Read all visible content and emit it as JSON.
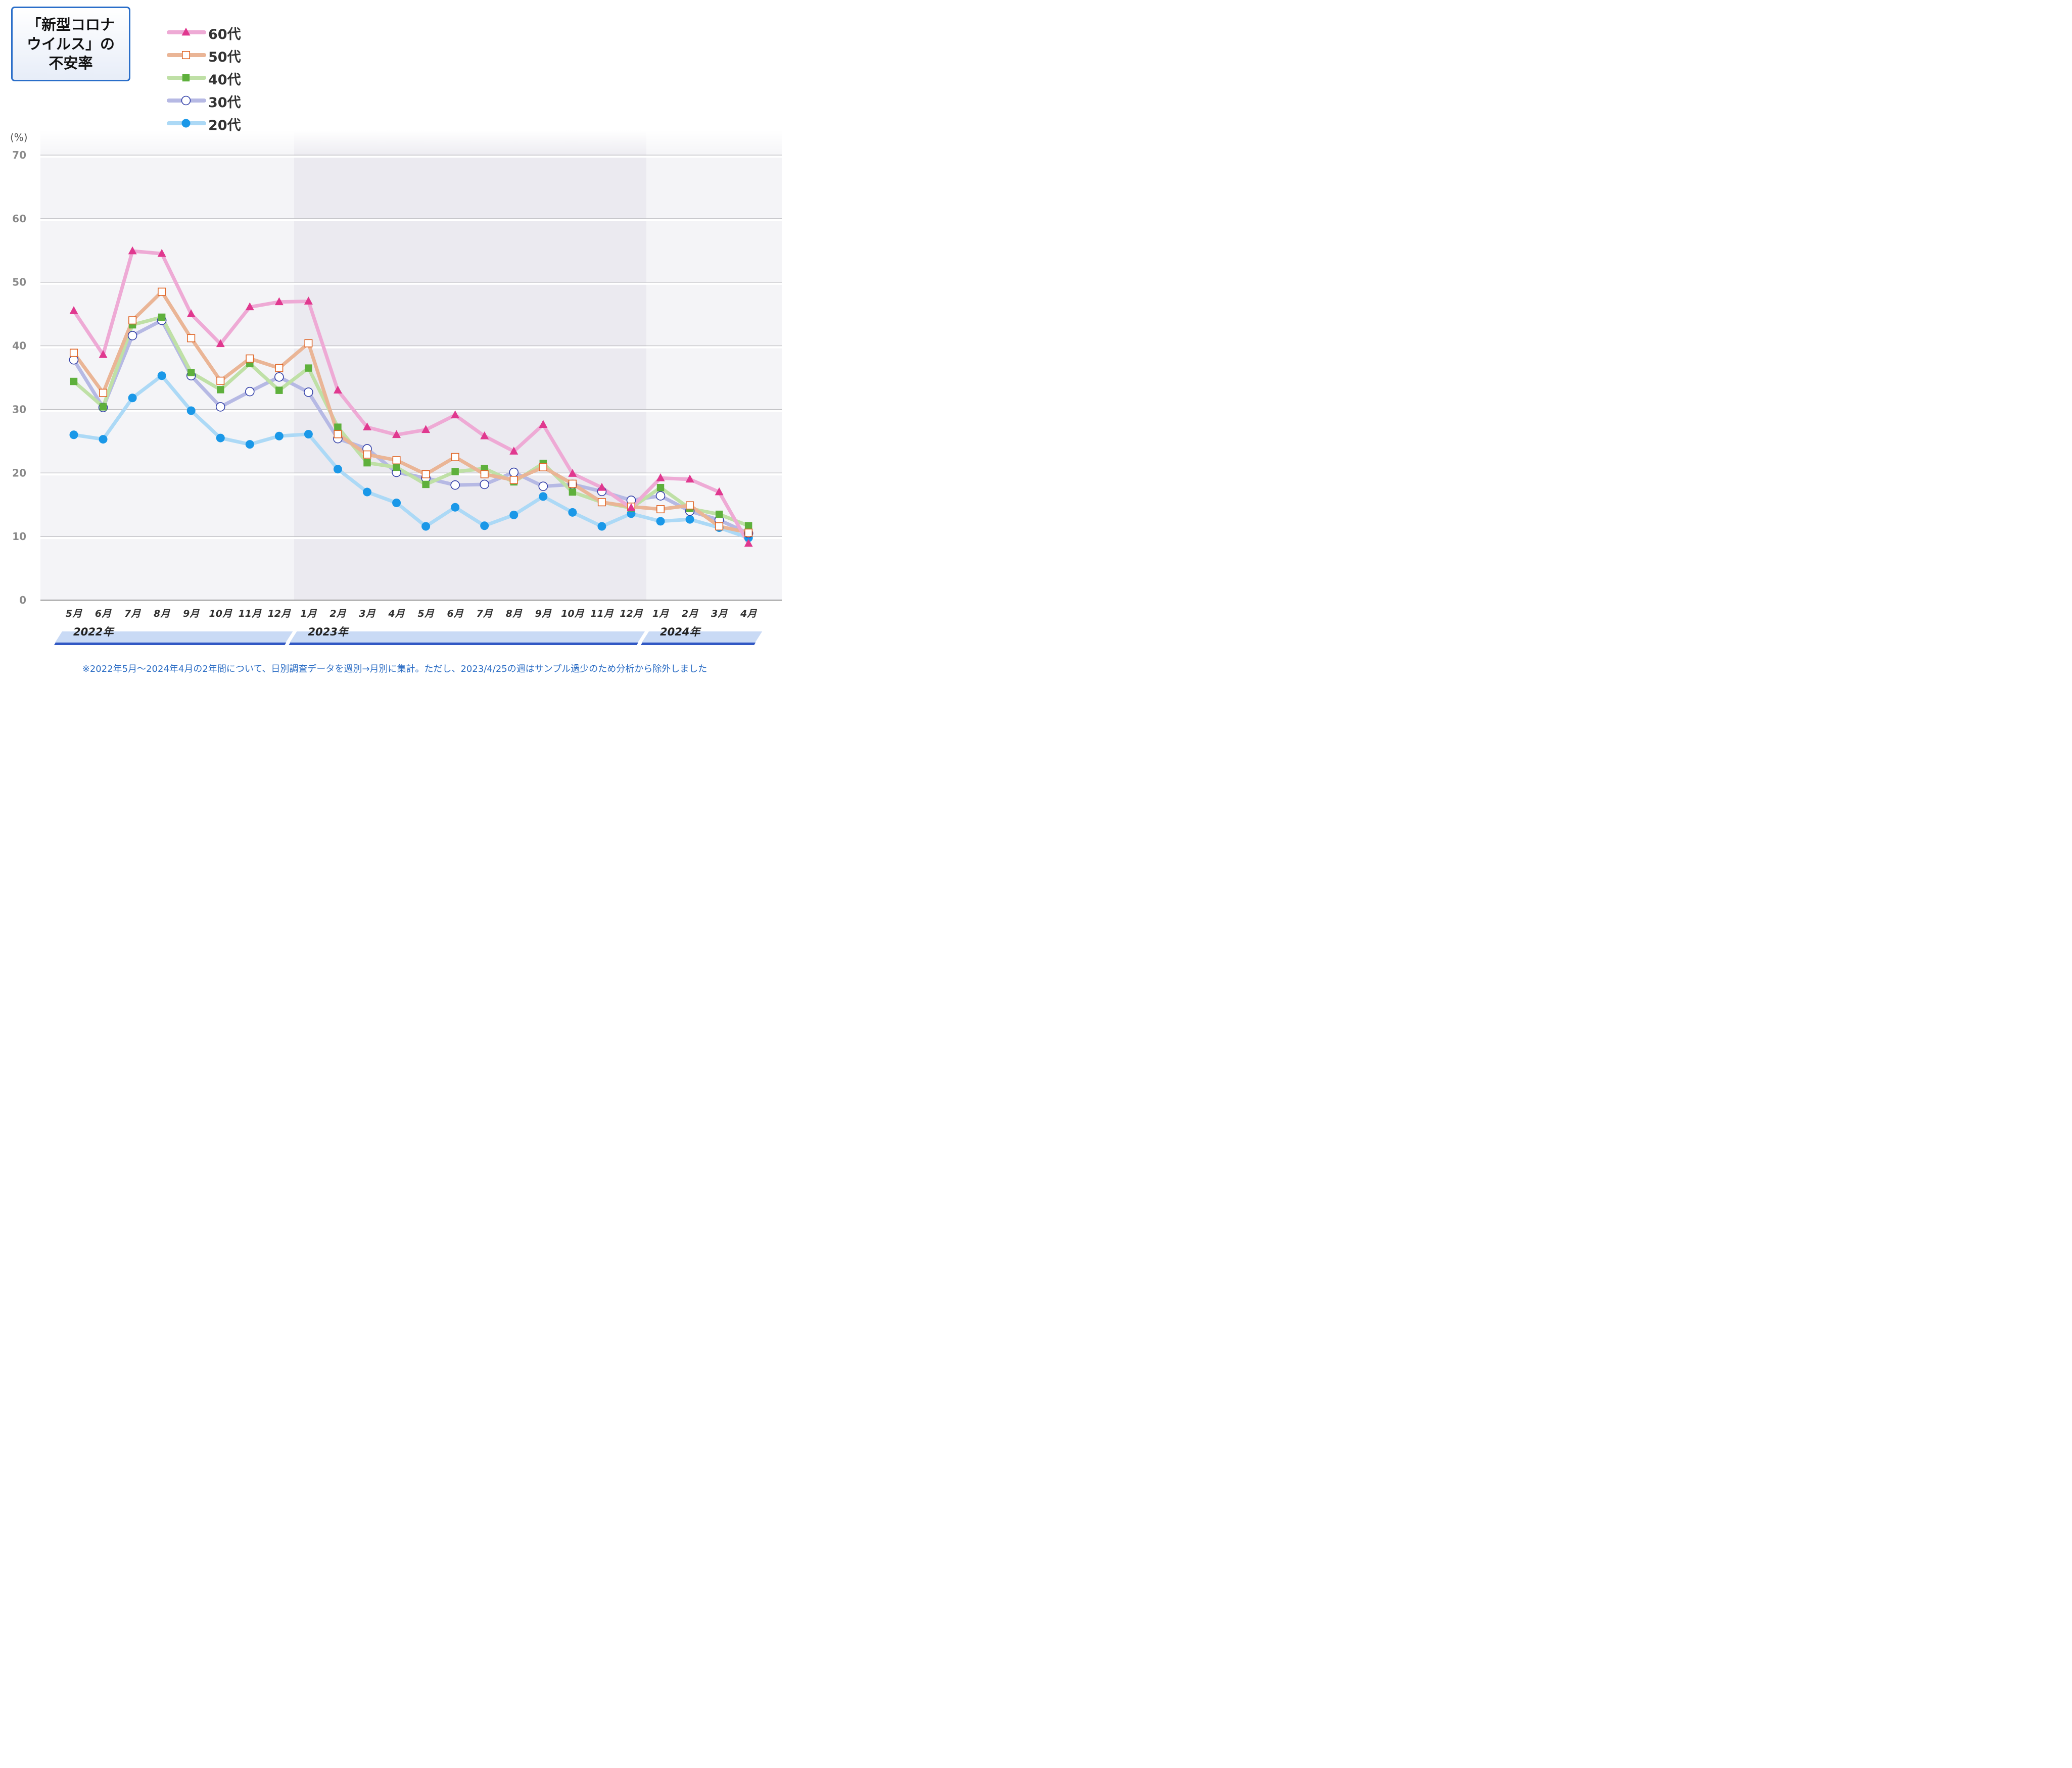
{
  "title_lines": [
    "「新型コロナ",
    "ウイルス」の",
    "不安率"
  ],
  "footnote": "※2022年5月～2024年4月の2年間について、日別調査データを週別→月別に集計。ただし、2023/4/25の週はサンプル過少のため分析から除外しました",
  "legend": [
    {
      "label": "60代",
      "marker": "triangle",
      "line_color": "#eeaad5",
      "marker_color": "#e0388f"
    },
    {
      "label": "50代",
      "marker": "open-square",
      "line_color": "#eab596",
      "marker_color": "#e0682a"
    },
    {
      "label": "40代",
      "marker": "square",
      "line_color": "#bfe0a6",
      "marker_color": "#5eb03c"
    },
    {
      "label": "30代",
      "marker": "open-circle",
      "line_color": "#b6b9e4",
      "marker_color": "#3340a8"
    },
    {
      "label": "20代",
      "marker": "circle",
      "line_color": "#acd9f6",
      "marker_color": "#1a98e8"
    }
  ],
  "chart_data": {
    "type": "line",
    "ylabel": "(%)",
    "ylim": [
      0,
      70
    ],
    "yticks": [
      "0",
      "10",
      "20",
      "30",
      "40",
      "50",
      "60",
      "70"
    ],
    "categories": [
      "5月",
      "6月",
      "7月",
      "8月",
      "9月",
      "10月",
      "11月",
      "12月",
      "1月",
      "2月",
      "3月",
      "4月",
      "5月",
      "6月",
      "7月",
      "8月",
      "9月",
      "10月",
      "11月",
      "12月",
      "1月",
      "2月",
      "3月",
      "4月"
    ],
    "year_groups": [
      {
        "label": "2022年",
        "from": 0,
        "to": 7
      },
      {
        "label": "2023年",
        "from": 8,
        "to": 19
      },
      {
        "label": "2024年",
        "from": 20,
        "to": 23
      }
    ],
    "series": [
      {
        "name": "20代",
        "values": [
          26.0,
          25.3,
          31.8,
          35.3,
          29.8,
          25.5,
          24.5,
          25.8,
          26.1,
          20.6,
          17.0,
          15.3,
          11.6,
          14.6,
          11.7,
          13.4,
          16.3,
          13.8,
          11.6,
          13.6,
          12.4,
          12.7,
          11.4,
          9.8
        ]
      },
      {
        "name": "30代",
        "values": [
          37.8,
          30.3,
          41.6,
          44.0,
          35.3,
          30.4,
          32.8,
          35.1,
          32.7,
          25.4,
          23.8,
          20.1,
          19.2,
          18.1,
          18.2,
          20.1,
          17.9,
          18.2,
          17.1,
          15.7,
          16.4,
          14.0,
          12.6,
          10.5
        ]
      },
      {
        "name": "40代",
        "values": [
          34.4,
          30.4,
          43.3,
          44.5,
          35.8,
          33.1,
          37.2,
          33.0,
          36.5,
          27.2,
          21.6,
          20.9,
          18.2,
          20.2,
          20.7,
          18.6,
          21.5,
          17.0,
          15.4,
          14.5,
          17.7,
          14.4,
          13.5,
          11.7
        ]
      },
      {
        "name": "50代",
        "values": [
          38.9,
          32.6,
          44.0,
          48.5,
          41.2,
          34.5,
          38.0,
          36.5,
          40.4,
          26.1,
          22.9,
          22.0,
          19.8,
          22.5,
          19.8,
          18.9,
          20.9,
          18.3,
          15.4,
          14.7,
          14.3,
          14.9,
          11.6,
          10.6
        ]
      },
      {
        "name": "60代",
        "values": [
          45.5,
          38.6,
          54.9,
          54.5,
          45.0,
          40.3,
          46.1,
          46.9,
          47.0,
          33.0,
          27.2,
          26.0,
          26.8,
          29.1,
          25.8,
          23.4,
          27.6,
          19.9,
          17.7,
          14.5,
          19.2,
          19.0,
          17.0,
          8.9
        ]
      }
    ],
    "grid": true,
    "legend_position": "top-left"
  }
}
